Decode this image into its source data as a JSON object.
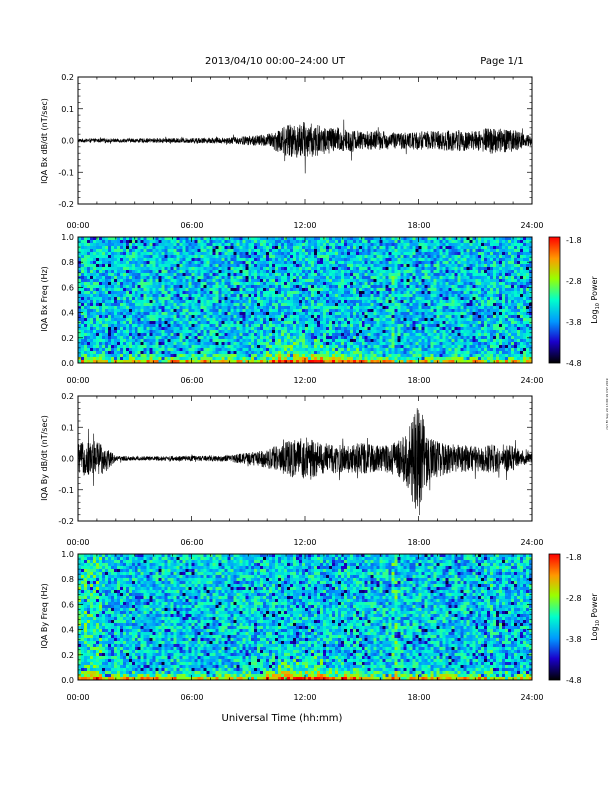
{
  "header": {
    "title": "2013/04/10  00:00–24:00 UT",
    "page": "Page 1/1"
  },
  "footer": {
    "xlabel": "Universal Time (hh:mm)",
    "side_note": "mrt Fri Sep 20 13:00:19 CST 2019"
  },
  "x_ticks": [
    "00:00",
    "06:00",
    "12:00",
    "18:00",
    "24:00"
  ],
  "colorbar": {
    "ticks": [
      "-1.8",
      "-2.8",
      "-3.8",
      "-4.8"
    ],
    "label_prefix": "Log",
    "label_sub": "10",
    "label_suffix": " Power",
    "range": [
      -4.8,
      -1.8
    ]
  },
  "chart_data": [
    {
      "type": "line",
      "ylabel": "IQA Bx dB/dt (nT/sec)",
      "xlim": [
        0,
        24
      ],
      "ylim": [
        -0.2,
        0.2
      ],
      "y_ticks": [
        "0.2",
        "0.1",
        "0.0",
        "-0.1",
        "-0.2"
      ],
      "envelope": {
        "x_hours": [
          0,
          2,
          4,
          6,
          8,
          10,
          11,
          12,
          13,
          14,
          15,
          16,
          17,
          18,
          19,
          20,
          21,
          22,
          23,
          24
        ],
        "amplitude": [
          0.006,
          0.006,
          0.007,
          0.008,
          0.01,
          0.02,
          0.05,
          0.06,
          0.045,
          0.04,
          0.03,
          0.03,
          0.025,
          0.03,
          0.03,
          0.035,
          0.03,
          0.045,
          0.035,
          0.015
        ]
      }
    },
    {
      "type": "heatmap",
      "ylabel": "IQA Bx Freq (Hz)",
      "xlim": [
        0,
        24
      ],
      "ylim": [
        0,
        1.0
      ],
      "y_ticks": [
        "1.0",
        "0.8",
        "0.6",
        "0.4",
        "0.2",
        "0.0"
      ],
      "z_range": [
        -4.8,
        -1.8
      ]
    },
    {
      "type": "line",
      "ylabel": "IQA By dB/dt (nT/sec)",
      "xlim": [
        0,
        24
      ],
      "ylim": [
        -0.2,
        0.2
      ],
      "y_ticks": [
        "0.2",
        "0.1",
        "0.0",
        "-0.1",
        "-0.2"
      ],
      "envelope": {
        "x_hours": [
          0,
          1,
          1.5,
          2,
          4,
          6,
          8,
          10,
          11,
          12,
          13,
          14,
          15,
          16,
          17,
          17.5,
          18,
          18.5,
          19,
          20,
          21,
          22,
          23,
          24
        ],
        "amplitude": [
          0.05,
          0.06,
          0.04,
          0.008,
          0.007,
          0.008,
          0.01,
          0.03,
          0.055,
          0.07,
          0.05,
          0.045,
          0.05,
          0.04,
          0.06,
          0.1,
          0.2,
          0.07,
          0.06,
          0.045,
          0.04,
          0.05,
          0.04,
          0.015
        ]
      }
    },
    {
      "type": "heatmap",
      "ylabel": "IQA By Freq (Hz)",
      "xlim": [
        0,
        24
      ],
      "ylim": [
        0,
        1.0
      ],
      "y_ticks": [
        "1.0",
        "0.8",
        "0.6",
        "0.4",
        "0.2",
        "0.0"
      ],
      "z_range": [
        -4.8,
        -1.8
      ]
    }
  ]
}
